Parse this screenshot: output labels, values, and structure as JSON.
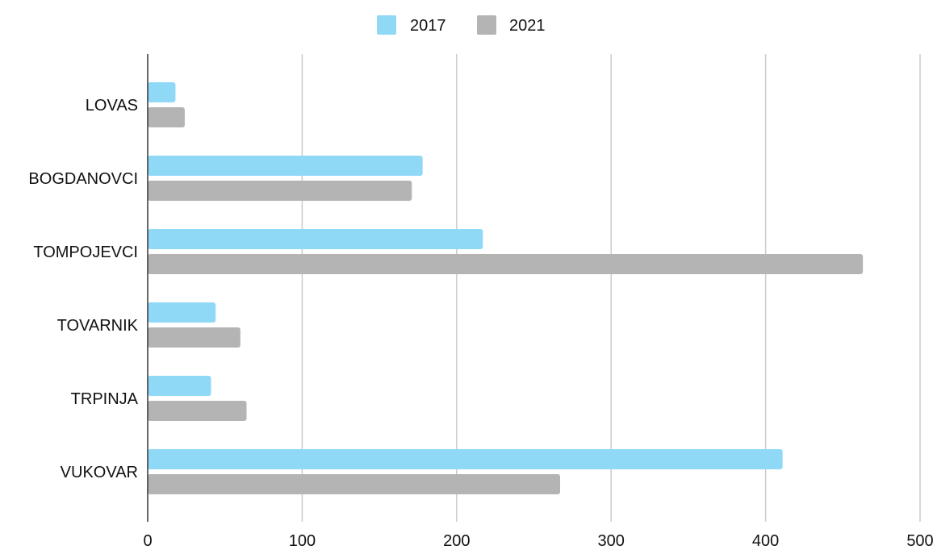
{
  "chart_data": {
    "type": "bar",
    "orientation": "horizontal",
    "title": "",
    "xlabel": "",
    "ylabel": "",
    "categories": [
      "LOVAS",
      "BOGDANOVCI",
      "TOMPOJEVCI",
      "TOVARNIK",
      "TRPINJA",
      "VUKOVAR"
    ],
    "series": [
      {
        "name": "2017",
        "color": "#8fd9f7",
        "values": [
          18,
          178,
          217,
          44,
          41,
          411
        ]
      },
      {
        "name": "2021",
        "color": "#b4b4b4",
        "values": [
          24,
          171,
          463,
          60,
          64,
          267
        ]
      }
    ],
    "xlim": [
      0,
      500
    ],
    "x_ticks": [
      "0",
      "100",
      "200",
      "300",
      "400",
      "500"
    ],
    "grid": "vertical",
    "legend_position": "top-center"
  }
}
